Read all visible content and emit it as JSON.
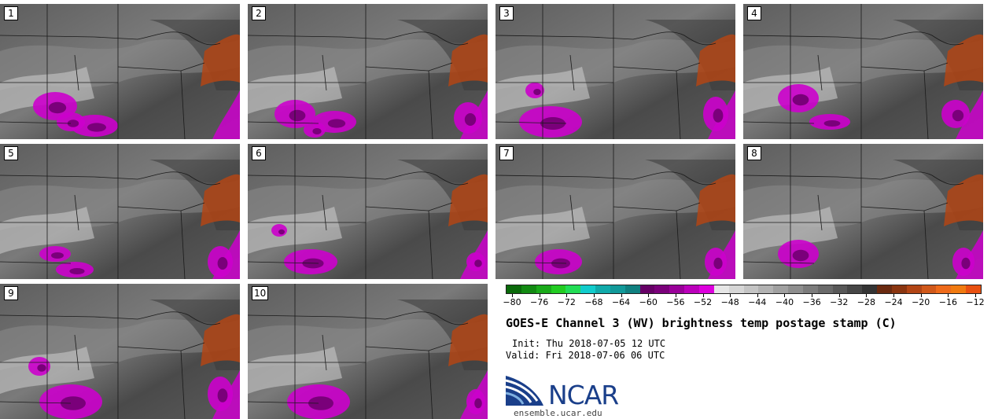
{
  "panels": [
    "1",
    "2",
    "3",
    "4",
    "5",
    "6",
    "7",
    "8",
    "9",
    "10"
  ],
  "colorbar": {
    "ticks": [
      "−80",
      "−76",
      "−72",
      "−68",
      "−64",
      "−60",
      "−56",
      "−52",
      "−48",
      "−44",
      "−40",
      "−36",
      "−32",
      "−28",
      "−24",
      "−20",
      "−16",
      "−12"
    ],
    "colors": [
      "#0a6a0a",
      "#128a12",
      "#1aaa1a",
      "#22cc22",
      "#22dd55",
      "#11cccc",
      "#10aaaa",
      "#119999",
      "#0f8080",
      "#660066",
      "#7a007a",
      "#990099",
      "#bb00bb",
      "#dd00dd",
      "#e6e6e6",
      "#d6d6d6",
      "#c4c4c4",
      "#b2b2b2",
      "#a0a0a0",
      "#8e8e8e",
      "#7c7c7c",
      "#6a6a6a",
      "#585858",
      "#464646",
      "#343434",
      "#6a2a10",
      "#8a3510",
      "#b24515",
      "#d0581a",
      "#ee6a1a",
      "#f07a10",
      "#e85010"
    ]
  },
  "title": "GOES-E Channel 3 (WV) brightness temp postage stamp (C)",
  "init": "Init: Thu 2018-07-05 12 UTC",
  "valid": "Valid: Fri 2018-07-06 06 UTC",
  "logo": {
    "text": "NCAR",
    "site": "ensemble.ucar.edu",
    "brand_color": "#1a3f8a"
  }
}
